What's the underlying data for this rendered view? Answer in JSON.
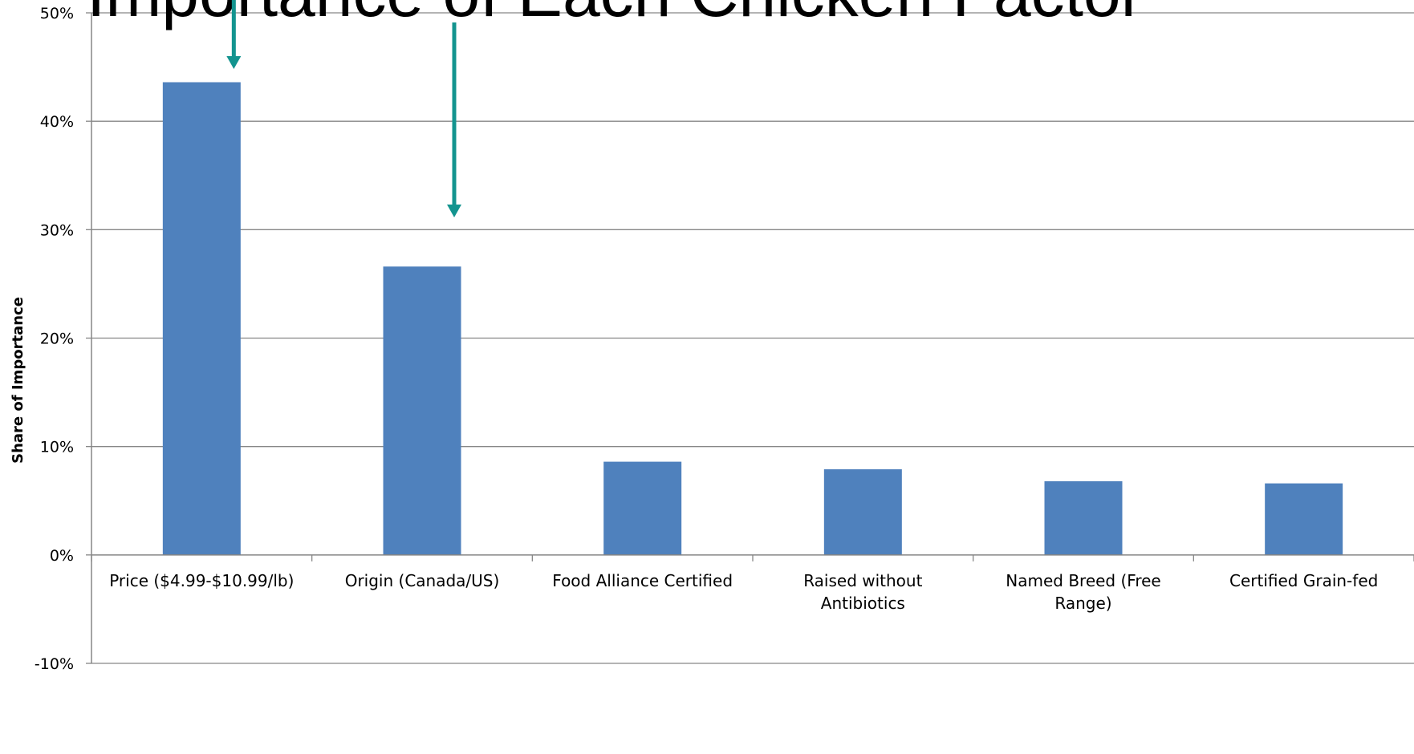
{
  "chart_data": {
    "type": "bar",
    "title": "Importance of Each Chicken Factor",
    "xlabel": "",
    "ylabel": "Share of Importance",
    "ylim": [
      -10,
      50
    ],
    "y_ticks": [
      "-10%",
      "0%",
      "10%",
      "20%",
      "30%",
      "40%",
      "50%"
    ],
    "y_tick_values": [
      -10,
      0,
      10,
      20,
      30,
      40,
      50
    ],
    "grid": true,
    "categories": [
      [
        "Price ($4.99-$10.99/lb)"
      ],
      [
        "Origin (Canada/US)"
      ],
      [
        "Food Alliance Certified"
      ],
      [
        "Raised without",
        "Antibiotics"
      ],
      [
        "Named Breed (Free",
        "Range)"
      ],
      [
        "Certified Grain-fed"
      ]
    ],
    "values": [
      43.6,
      26.6,
      8.6,
      7.9,
      6.8,
      6.6
    ],
    "series": [
      {
        "values": [
          43.6,
          26.6,
          8.6,
          7.9,
          6.8,
          6.6
        ]
      }
    ],
    "annotations": [
      {
        "type": "arrow",
        "target_category": 0,
        "color": "#13948f"
      },
      {
        "type": "arrow",
        "target_category": 1,
        "color": "#13948f"
      }
    ],
    "colors": {
      "bar": "#4f81bd",
      "grid": "#868686",
      "axis": "#868686",
      "arrow": "#13948f"
    }
  }
}
